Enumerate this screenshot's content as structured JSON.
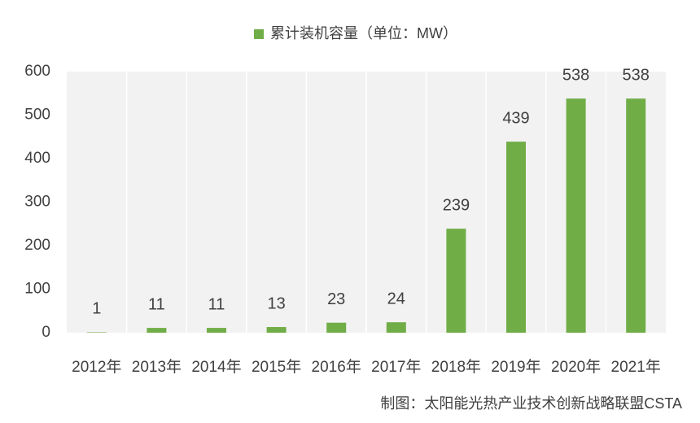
{
  "chart_data": {
    "type": "bar",
    "categories": [
      "2012年",
      "2013年",
      "2014年",
      "2015年",
      "2016年",
      "2017年",
      "2018年",
      "2019年",
      "2020年",
      "2021年"
    ],
    "series": [
      {
        "name": "累计装机容量（单位：MW）",
        "color": "#70ad47",
        "values": [
          1,
          11,
          11,
          13,
          23,
          24,
          239,
          439,
          538,
          538
        ]
      }
    ],
    "ylim": [
      0,
      600
    ],
    "yticks": [
      0,
      100,
      200,
      300,
      400,
      500,
      600
    ],
    "grid": false,
    "legend": "top",
    "source": "制图：太阳能光热产业技术创新战略联盟CSTA"
  }
}
